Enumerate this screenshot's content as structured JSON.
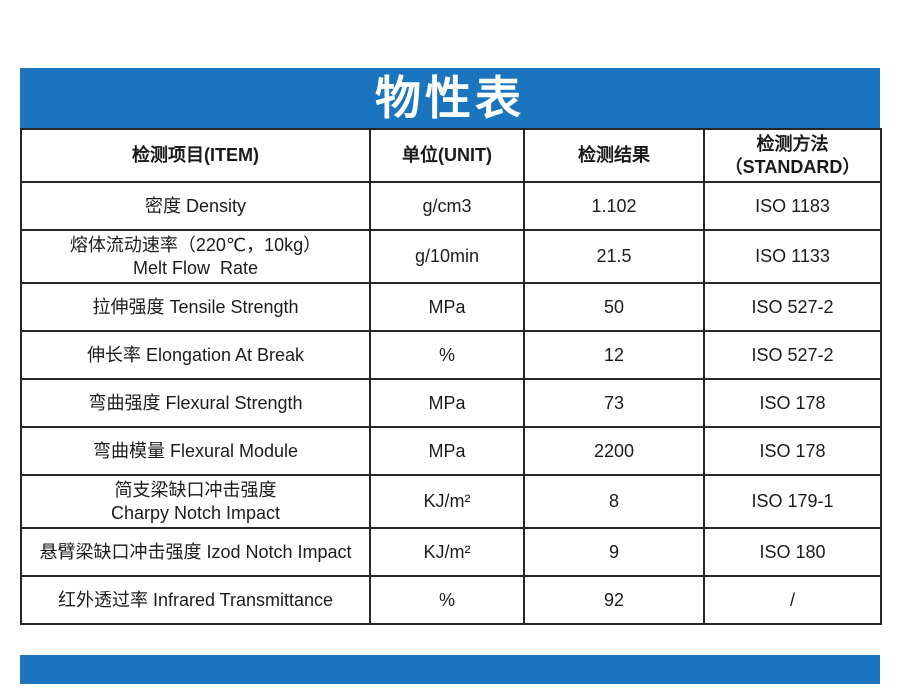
{
  "banner": {
    "title": "物性表",
    "color": "#1b74be"
  },
  "table": {
    "border_color": "#262626",
    "headers": [
      "检测项目(ITEM)",
      "单位(UNIT)",
      "检测结果",
      "检测方法\n（STANDARD）"
    ],
    "rows": [
      {
        "item": "密度 Density",
        "unit": "g/cm3",
        "result": "1.102",
        "standard": "ISO 1183"
      },
      {
        "item": "熔体流动速率（220℃，10kg）\nMelt Flow  Rate",
        "unit": "g/10min",
        "result": "21.5",
        "standard": "ISO 1133"
      },
      {
        "item": "拉伸强度 Tensile Strength",
        "unit": "MPa",
        "result": "50",
        "standard": "ISO 527-2"
      },
      {
        "item": "伸长率 Elongation At Break",
        "unit": "%",
        "result": "12",
        "standard": "ISO 527-2"
      },
      {
        "item": "弯曲强度 Flexural Strength",
        "unit": "MPa",
        "result": "73",
        "standard": "ISO 178"
      },
      {
        "item": "弯曲模量 Flexural Module",
        "unit": "MPa",
        "result": "2200",
        "standard": "ISO 178"
      },
      {
        "item": "简支梁缺口冲击强度\nCharpy Notch Impact",
        "unit": "KJ/m²",
        "result": "8",
        "standard": "ISO 179-1"
      },
      {
        "item": "悬臂梁缺口冲击强度 Izod Notch Impact",
        "unit": "KJ/m²",
        "result": "9",
        "standard": "ISO 180"
      },
      {
        "item": "红外透过率 Infrared Transmittance",
        "unit": "%",
        "result": "92",
        "standard": "/"
      }
    ]
  },
  "footer": {
    "color": "#1b74be"
  }
}
